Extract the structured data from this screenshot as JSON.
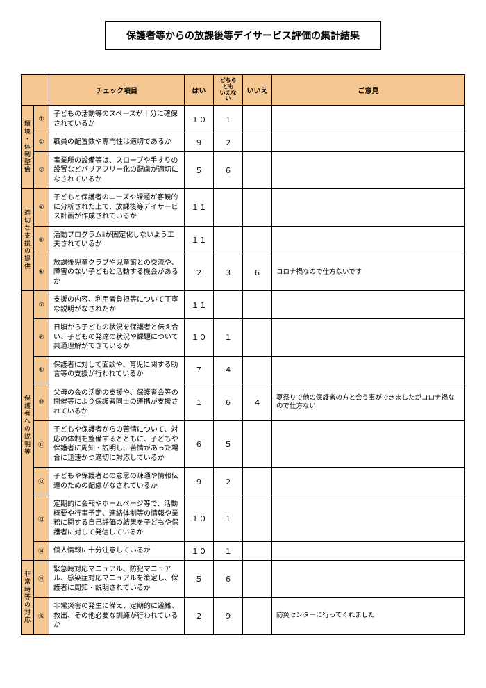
{
  "title": "保護者等からの放課後等デイサービス評価の集計結果",
  "headers": {
    "item": "チェック項目",
    "yes": "はい",
    "neither": "どちらとも\nいえない",
    "no": "いいえ",
    "comment": "ご意見"
  },
  "circled_nums": [
    "①",
    "②",
    "③",
    "④",
    "⑤",
    "⑥",
    "⑦",
    "⑧",
    "⑨",
    "⑩",
    "⑪",
    "⑫",
    "⑬",
    "⑭",
    "⑮",
    "⑯"
  ],
  "categories": [
    {
      "label": "環境・体制整備",
      "rows": [
        0,
        1,
        2
      ]
    },
    {
      "label": "適切な支援の提供",
      "rows": [
        3,
        4,
        5
      ]
    },
    {
      "label": "保護者への説明等",
      "rows": [
        6,
        7,
        8,
        9,
        10,
        11,
        12,
        13
      ]
    },
    {
      "label": "非常時等の対応",
      "rows": [
        14,
        15
      ]
    }
  ],
  "rows": [
    {
      "item": "子どもの活動等のスペースが十分に確保されているか",
      "yes": "１０",
      "mid": "１",
      "no": "",
      "comment": ""
    },
    {
      "item": "職員の配置数や専門性は適切であるか",
      "yes": "９",
      "mid": "２",
      "no": "",
      "comment": ""
    },
    {
      "item": "事業所の設備等は、スロープや手すりの設置などバリアフリー化の配慮が適切になされているか",
      "yes": "５",
      "mid": "６",
      "no": "",
      "comment": ""
    },
    {
      "item": "子どもと保護者のニーズや課題が客観的に分析された上で、放課後等デイサービス計画が作成されているか",
      "yes": "１１",
      "mid": "",
      "no": "",
      "comment": ""
    },
    {
      "item": "活動プログラムⅱが固定化しないよう工夫されているか",
      "yes": "１１",
      "mid": "",
      "no": "",
      "comment": ""
    },
    {
      "item": "放課後児童クラブや児童館との交流や、障害のない子どもと活動する機会があるか",
      "yes": "２",
      "mid": "３",
      "no": "６",
      "comment": "コロナ禍なので仕方ないです"
    },
    {
      "item": "支援の内容、利用者負担等について丁寧な説明がなされたか",
      "yes": "１１",
      "mid": "",
      "no": "",
      "comment": ""
    },
    {
      "item": "日頃から子どもの状況を保護者と伝え合い、子どもの発達の状況や課題について共通理解ができているか",
      "yes": "１０",
      "mid": "１",
      "no": "",
      "comment": ""
    },
    {
      "item": "保護者に対して面談や、育児に関する助言等の支援が行われているか",
      "yes": "７",
      "mid": "４",
      "no": "",
      "comment": ""
    },
    {
      "item": "父母の会の活動の支援や、保護者会等の開催等により保護者同士の連携が支援されているか",
      "yes": "１",
      "mid": "６",
      "no": "４",
      "comment": "夏祭りで他の保護者の方と会う事ができましたがコロナ禍なので仕方ない"
    },
    {
      "item": "子どもや保護者からの苦情について、対応の体制を整備するとともに、子どもや保護者に周知・説明し、苦情があった場合に迅速かつ適切に対応しているか",
      "yes": "６",
      "mid": "５",
      "no": "",
      "comment": ""
    },
    {
      "item": "子どもや保護者との意思の疎通や情報伝達のための配慮がなされているか",
      "yes": "９",
      "mid": "２",
      "no": "",
      "comment": ""
    },
    {
      "item": "定期的に会報やホームページ等で、活動概要や行事予定、連絡体制等の情報や業務に関する自己評価の結果を子どもや保護者に対して発信しているか",
      "yes": "１０",
      "mid": "１",
      "no": "",
      "comment": ""
    },
    {
      "item": "個人情報に十分注意しているか",
      "yes": "１０",
      "mid": "１",
      "no": "",
      "comment": ""
    },
    {
      "item": "緊急時対応マニュアル、防犯マニュアル、感染症対応マニュアルを策定し、保護者に周知・説明されているか",
      "yes": "５",
      "mid": "６",
      "no": "",
      "comment": ""
    },
    {
      "item": "非常災害の発生に備え、定期的に避難、救出、その他必要な訓練が行われているか",
      "yes": "２",
      "mid": "９",
      "no": "",
      "comment": "防災センターに行ってくれました"
    }
  ],
  "colors": {
    "header_bg": "#f5c893",
    "border": "#000000",
    "background": "#ffffff"
  },
  "typography": {
    "base_font_size": 10,
    "title_font_size": 14
  }
}
